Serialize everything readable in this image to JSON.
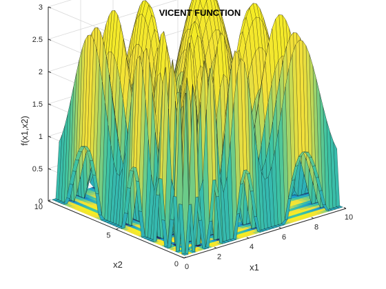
{
  "chart_data": {
    "type": "surface3d",
    "title": "VICENT FUNCTION",
    "xlabel": "x1",
    "ylabel": "x2",
    "zlabel": "f(x1,x2)",
    "xlim": [
      0,
      10
    ],
    "ylim": [
      0,
      10
    ],
    "zlim": [
      0,
      3
    ],
    "x_ticks": [
      "0",
      "2",
      "4",
      "6",
      "8",
      "10"
    ],
    "y_ticks": [
      "0",
      "5",
      "10"
    ],
    "z_ticks": [
      "0",
      "0.5",
      "1",
      "1.5",
      "2",
      "2.5",
      "3"
    ],
    "function": "sin(10*log(x1)) + sin(10*log(x2)) + 1",
    "x_domain": [
      0.25,
      10
    ],
    "y_domain": [
      0.25,
      10
    ],
    "contour_on_floor": true,
    "colormap": "parula",
    "surface_colors": [
      "#2a1f5e",
      "#1a9bd0",
      "#3fc4a3",
      "#f2e03a",
      "#f5ee22"
    ],
    "grid": true,
    "box": true
  }
}
